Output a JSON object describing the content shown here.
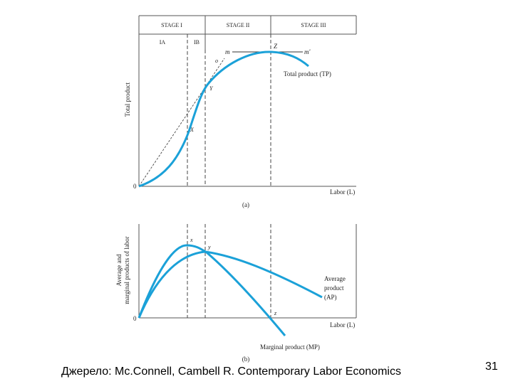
{
  "top_panel": {
    "stages": [
      "STAGE I",
      "STAGE II",
      "STAGE III"
    ],
    "substages": [
      "IA",
      "IB"
    ],
    "y_label": "Total product",
    "x_label": "Labor (L)",
    "origin": "0",
    "caption": "(a)",
    "points": {
      "m": "m",
      "o": "o",
      "z": "Z",
      "m_prime": "m'",
      "y": "Y",
      "x": "X"
    },
    "curve_label": "Total product (TP)"
  },
  "bottom_panel": {
    "y_label": [
      "Average and",
      "marginal products of labor"
    ],
    "x_label": "Labor (L)",
    "origin": "0",
    "caption": "(b)",
    "points": {
      "x": "x",
      "y": "y",
      "z": "z"
    },
    "ap_label": [
      "Average",
      "product",
      "(AP)"
    ],
    "mp_label": "Marginal product (MP)"
  },
  "footer": {
    "source": "Джерело: Mc.Connell, Cambell R. Contemporary Labor Economics",
    "page": "31"
  }
}
